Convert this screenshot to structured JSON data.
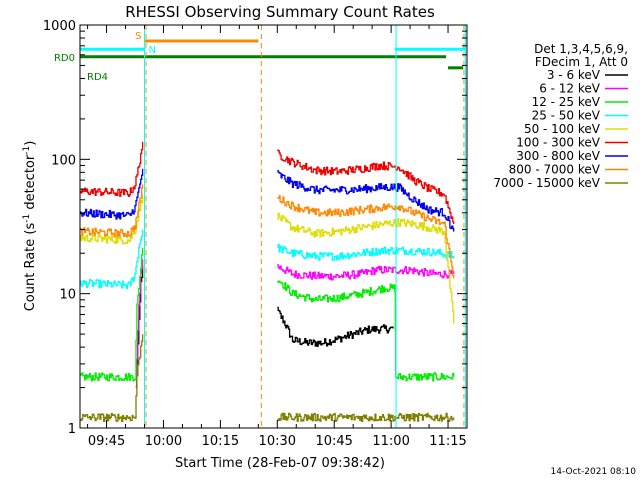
{
  "chart_data": {
    "type": "line",
    "title": "RHESSI Observing Summary Count Rates",
    "xlabel": "Start Time (28-Feb-07 09:38:42)",
    "ylabel_main": "Count Rate (s",
    "ylabel_sup1": "-1",
    "ylabel_mid": " detector",
    "ylabel_sup2": "-1",
    "ylabel_end": ")",
    "yscale": "log",
    "ylim": [
      1,
      1000
    ],
    "xlim_min": [
      0,
      102
    ],
    "x_ticks": [
      {
        "min": 7,
        "label": "09:45"
      },
      {
        "min": 22,
        "label": "10:00"
      },
      {
        "min": 37,
        "label": "10:15"
      },
      {
        "min": 52,
        "label": "10:30"
      },
      {
        "min": 67,
        "label": "10:45"
      },
      {
        "min": 82,
        "label": "11:00"
      },
      {
        "min": 97,
        "label": "11:15"
      }
    ],
    "y_ticks": [
      {
        "value": 1,
        "label": "1"
      },
      {
        "value": 10,
        "label": "10"
      },
      {
        "value": 100,
        "label": "100"
      },
      {
        "value": 1000,
        "label": "1000"
      }
    ],
    "legend_header": [
      "Det 1,3,4,5,6,9,",
      "FDecim 1, Att 0"
    ],
    "series": [
      {
        "name": "3 - 6 keV",
        "color": "#000000",
        "segments": [
          [
            [
              14.7,
              2
            ],
            [
              15.5,
              6
            ],
            [
              16,
              12
            ],
            [
              16.5,
              16
            ]
          ],
          [
            [
              52,
              7.5
            ],
            [
              54,
              6
            ],
            [
              56,
              4.5
            ],
            [
              60,
              4.3
            ],
            [
              64,
              4.3
            ],
            [
              68,
              4.6
            ],
            [
              72,
              5.0
            ],
            [
              76,
              5.4
            ],
            [
              82.5,
              5.5
            ]
          ]
        ]
      },
      {
        "name": "6 - 12 keV",
        "color": "#ff00ff",
        "segments": [
          [
            [
              14.7,
              2
            ],
            [
              15.5,
              8
            ],
            [
              16,
              14
            ],
            [
              16.5,
              18
            ]
          ],
          [
            [
              52,
              16
            ],
            [
              56,
              14
            ],
            [
              62,
              13.5
            ],
            [
              68,
              13.5
            ],
            [
              74,
              14
            ],
            [
              78,
              15
            ],
            [
              82,
              15
            ],
            [
              87,
              15
            ],
            [
              93,
              14
            ],
            [
              98.5,
              14
            ]
          ]
        ]
      },
      {
        "name": "12 - 25 keV",
        "color": "#00ee00",
        "segments": [
          [
            [
              0,
              2.4
            ],
            [
              14.5,
              2.4
            ],
            [
              15,
              8
            ],
            [
              16,
              16
            ],
            [
              16.5,
              22
            ]
          ],
          [
            [
              52,
              13
            ],
            [
              56,
              10
            ],
            [
              62,
              9
            ],
            [
              68,
              9.3
            ],
            [
              74,
              10
            ],
            [
              80,
              11
            ],
            [
              83,
              11
            ],
            [
              83.2,
              2.4
            ],
            [
              98.5,
              2.4
            ]
          ]
        ]
      },
      {
        "name": "25 - 50 keV",
        "color": "#00ffff",
        "segments": [
          [
            [
              0,
              12
            ],
            [
              13,
              11.5
            ],
            [
              14.5,
              14
            ],
            [
              15.5,
              22
            ],
            [
              16.5,
              30
            ]
          ],
          [
            [
              52,
              22
            ],
            [
              56,
              20
            ],
            [
              62,
              19
            ],
            [
              68,
              19
            ],
            [
              74,
              20
            ],
            [
              80,
              21
            ],
            [
              85,
              21
            ],
            [
              92,
              20.5
            ],
            [
              95,
              20
            ],
            [
              98.5,
              19
            ]
          ]
        ]
      },
      {
        "name": "50 - 100 keV",
        "color": "#dddd00",
        "segments": [
          [
            [
              0,
              26
            ],
            [
              13,
              25
            ],
            [
              14.5,
              30
            ],
            [
              15.5,
              40
            ],
            [
              16.5,
              55
            ]
          ],
          [
            [
              52,
              38
            ],
            [
              56,
              31
            ],
            [
              62,
              28
            ],
            [
              68,
              29
            ],
            [
              74,
              31
            ],
            [
              80,
              33
            ],
            [
              84,
              34
            ],
            [
              88,
              33
            ],
            [
              92,
              31
            ],
            [
              96,
              29
            ],
            [
              98.5,
              6
            ]
          ]
        ]
      },
      {
        "name": "100 - 300 keV",
        "color": "#ee0000",
        "segments": [
          [
            [
              0,
              58
            ],
            [
              13,
              56
            ],
            [
              14.5,
              65
            ],
            [
              15.5,
              90
            ],
            [
              16.5,
              135
            ]
          ],
          [
            [
              52,
              110
            ],
            [
              56,
              95
            ],
            [
              62,
              83
            ],
            [
              68,
              81
            ],
            [
              74,
              85
            ],
            [
              79,
              90
            ],
            [
              84,
              88
            ],
            [
              88,
              70
            ],
            [
              92,
              60
            ],
            [
              96,
              55
            ],
            [
              98.5,
              33
            ]
          ]
        ]
      },
      {
        "name": "300 - 800 keV",
        "color": "#0000ee",
        "segments": [
          [
            [
              0,
              40
            ],
            [
              13,
              38
            ],
            [
              14.5,
              44
            ],
            [
              15.5,
              60
            ],
            [
              16.5,
              85
            ]
          ],
          [
            [
              52,
              78
            ],
            [
              56,
              66
            ],
            [
              62,
              59
            ],
            [
              68,
              59
            ],
            [
              74,
              60
            ],
            [
              80,
              62
            ],
            [
              84,
              62
            ],
            [
              88,
              50
            ],
            [
              92,
              42
            ],
            [
              96,
              40
            ],
            [
              98.5,
              29
            ]
          ]
        ]
      },
      {
        "name": "800 - 7000 keV",
        "color": "#ff8800",
        "segments": [
          [
            [
              0,
              29
            ],
            [
              13,
              28
            ],
            [
              14.5,
              32
            ],
            [
              15.5,
              45
            ],
            [
              16.5,
              65
            ]
          ],
          [
            [
              52,
              52
            ],
            [
              56,
              45
            ],
            [
              62,
              40
            ],
            [
              68,
              40
            ],
            [
              74,
              42
            ],
            [
              80,
              44
            ],
            [
              84,
              45
            ],
            [
              88,
              40
            ],
            [
              92,
              36
            ],
            [
              96,
              33
            ],
            [
              98.5,
              13
            ]
          ]
        ]
      },
      {
        "name": "7000 - 15000 keV",
        "color": "#808000",
        "segments": [
          [
            [
              0,
              1.2
            ],
            [
              14.5,
              1.2
            ],
            [
              15,
              2.5
            ],
            [
              16,
              4
            ],
            [
              16.5,
              5
            ]
          ],
          [
            [
              52,
              1.2
            ],
            [
              98.5,
              1.2
            ]
          ]
        ]
      }
    ],
    "bars": [
      {
        "label": "S",
        "color": "#ff8800",
        "x": [
          17,
          47
        ],
        "y": 760
      },
      {
        "label": "N",
        "color": "#00ffff",
        "x": [
          0,
          17
        ],
        "y": 660
      },
      {
        "label": "N",
        "color": "#00ffff",
        "x": [
          83,
          101.7
        ],
        "y": 660
      },
      {
        "label": "RD0",
        "color": "#008000",
        "x": [
          0,
          96.5
        ],
        "y": 580
      },
      {
        "label": "RD4",
        "color": "#008000",
        "x": [
          97,
          101
        ],
        "y": 480
      }
    ],
    "vlines": [
      {
        "x": 17.4,
        "color": "#ff8800",
        "dash": true
      },
      {
        "x": 47.8,
        "color": "#ff8800",
        "dash": true
      },
      {
        "x": 101.2,
        "color": "#ff8800",
        "dash": true
      },
      {
        "x": 17.0,
        "color": "#00ffff",
        "dash": false
      },
      {
        "x": 83.3,
        "color": "#00ffff",
        "dash": false
      },
      {
        "x": 101.6,
        "color": "#00ffff",
        "dash": false
      }
    ]
  },
  "footer_date": "14-Oct-2021 08:10"
}
